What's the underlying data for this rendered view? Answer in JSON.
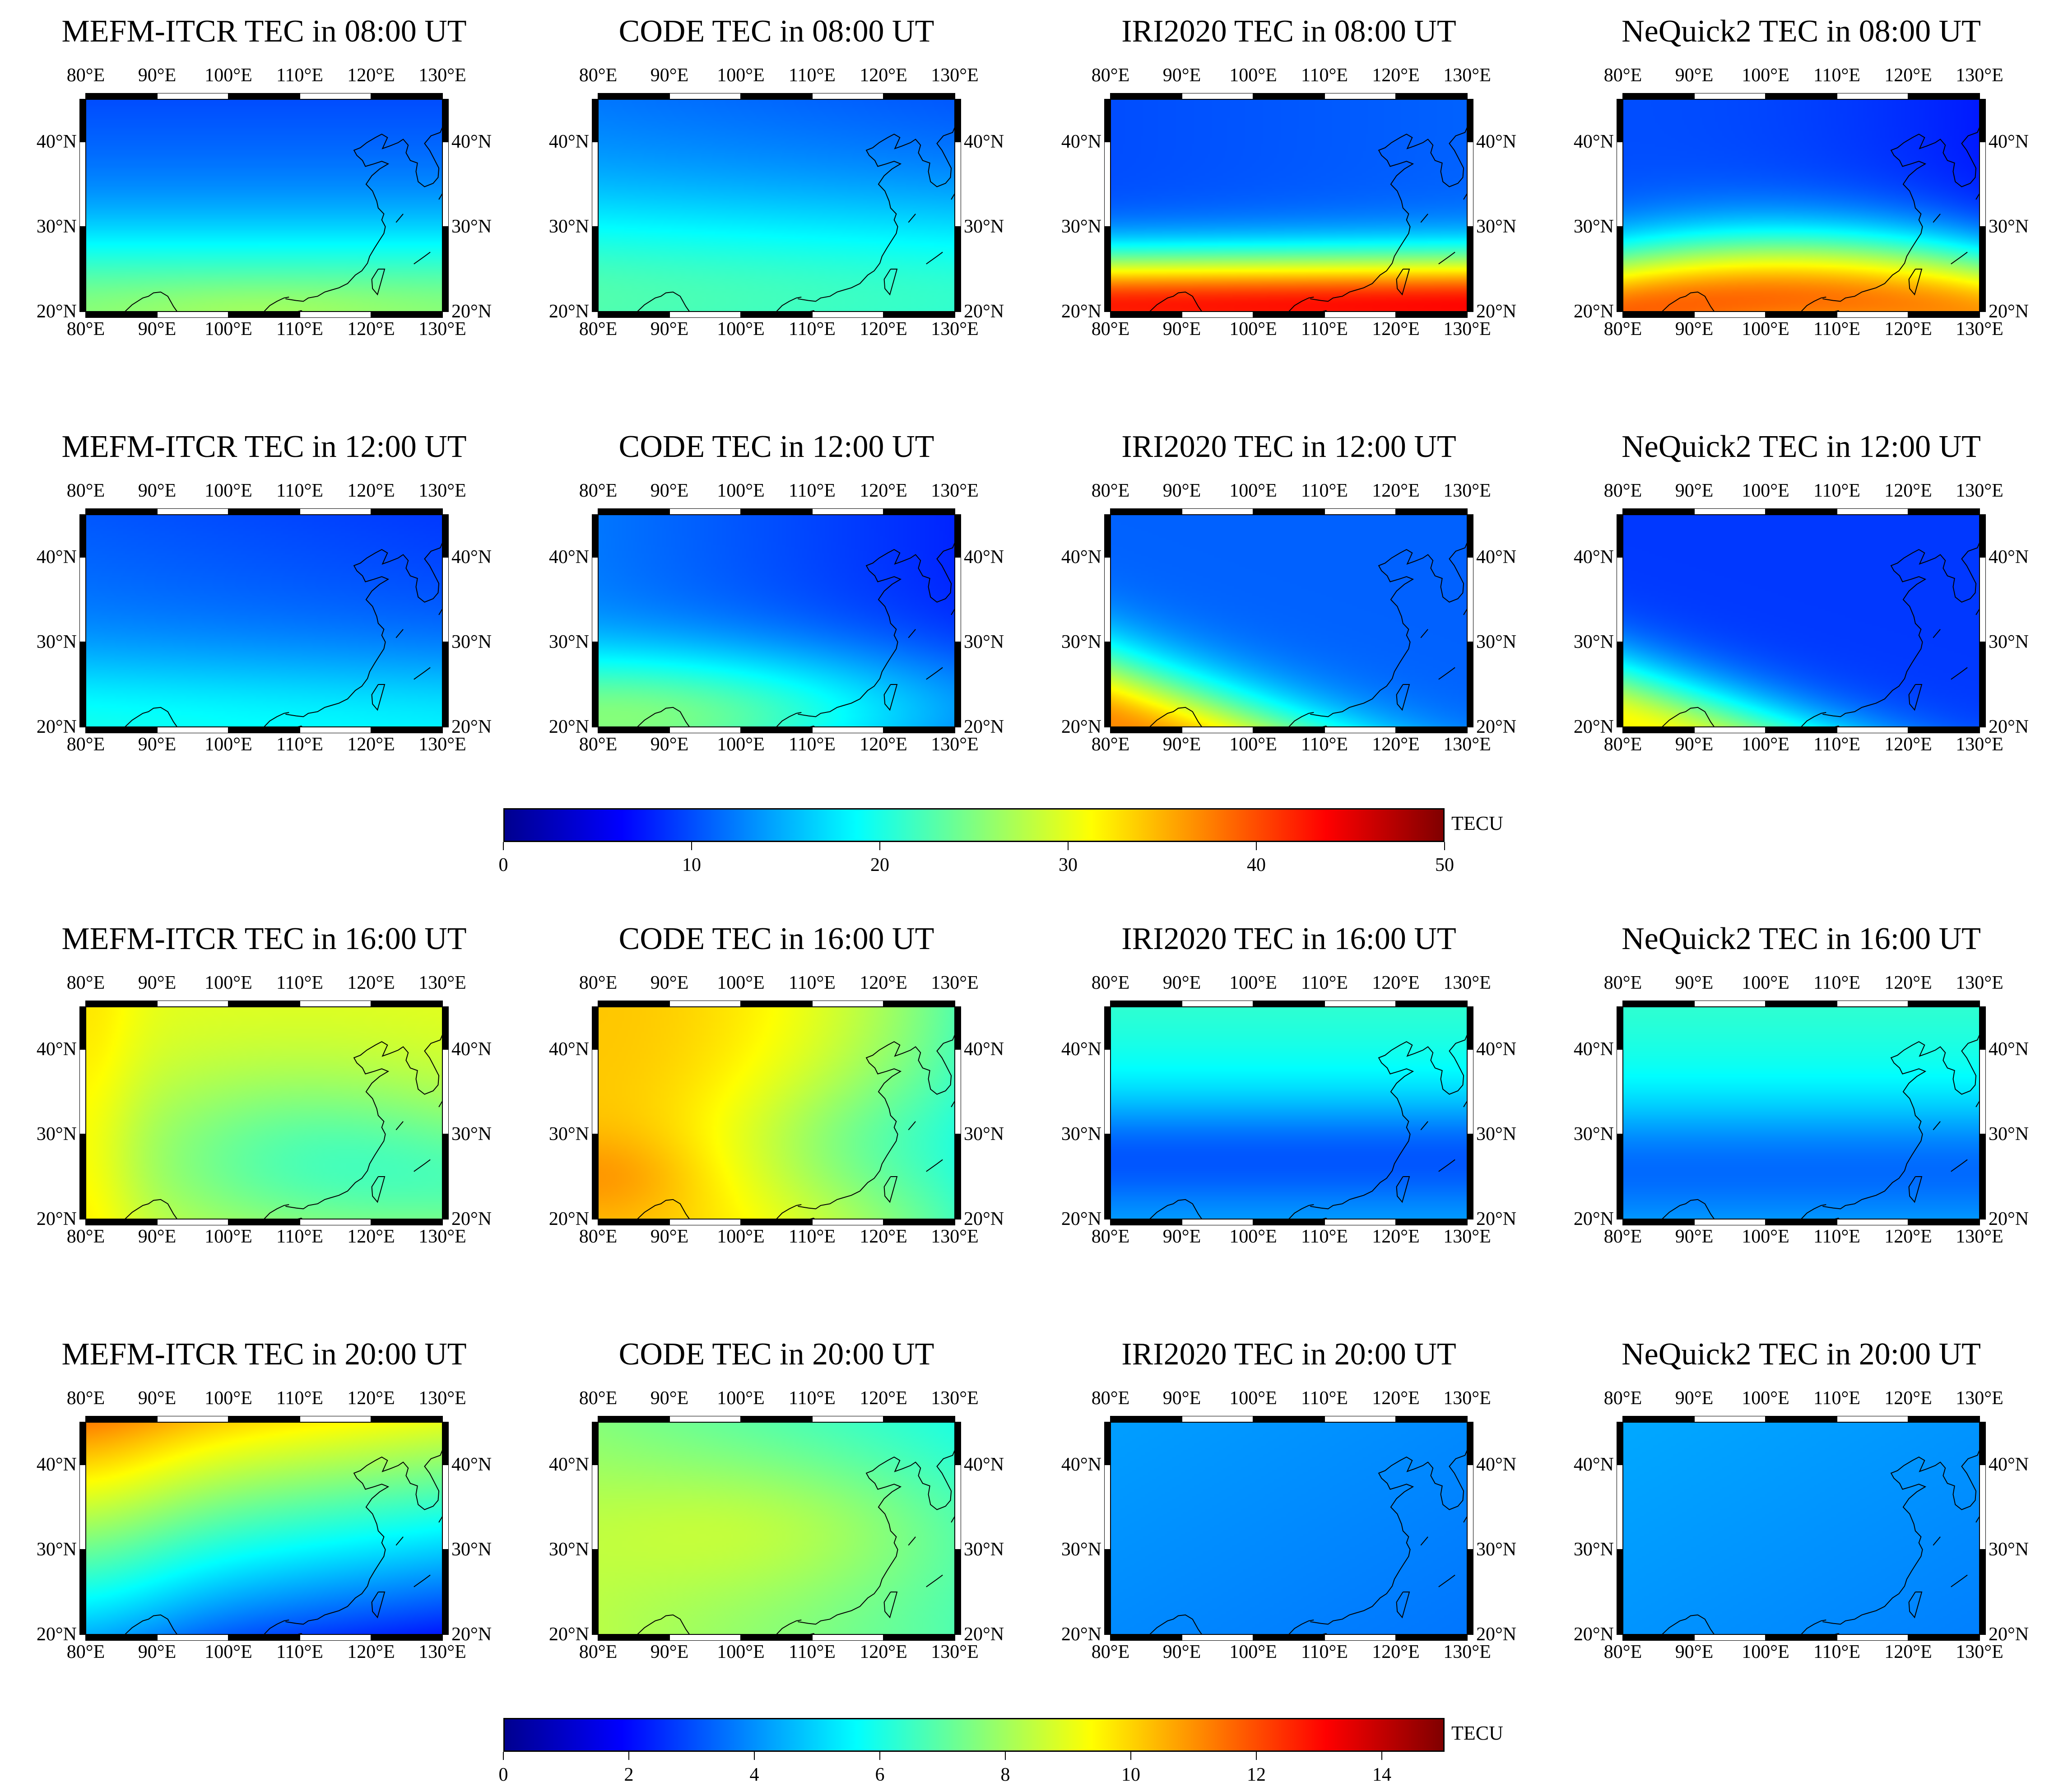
{
  "figure": {
    "rows": [
      {
        "row": 0,
        "panels": [
          {
            "title": "MEFM-ITCR TEC in 08:00 UT",
            "colorbar": 0
          },
          {
            "title": "CODE TEC in 08:00 UT",
            "colorbar": 0
          },
          {
            "title": "IRI2020 TEC in 08:00 UT",
            "colorbar": 0
          },
          {
            "title": "NeQuick2 TEC in 08:00 UT",
            "colorbar": 0
          }
        ]
      },
      {
        "row": 1,
        "panels": [
          {
            "title": "MEFM-ITCR TEC in 12:00 UT",
            "colorbar": 0
          },
          {
            "title": "CODE TEC in 12:00 UT",
            "colorbar": 0
          },
          {
            "title": "IRI2020 TEC in 12:00 UT",
            "colorbar": 0
          },
          {
            "title": "NeQuick2 TEC in 12:00 UT",
            "colorbar": 0
          }
        ]
      },
      {
        "row": 2,
        "panels": [
          {
            "title": "MEFM-ITCR TEC in 16:00 UT",
            "colorbar": 1
          },
          {
            "title": "CODE TEC in 16:00 UT",
            "colorbar": 1
          },
          {
            "title": "IRI2020 TEC in 16:00 UT",
            "colorbar": 1
          },
          {
            "title": "NeQuick2 TEC in 16:00 UT",
            "colorbar": 1
          }
        ]
      },
      {
        "row": 3,
        "panels": [
          {
            "title": "MEFM-ITCR TEC in 20:00 UT",
            "colorbar": 1
          },
          {
            "title": "CODE TEC in 20:00 UT",
            "colorbar": 1
          },
          {
            "title": "IRI2020 TEC in 20:00 UT",
            "colorbar": 1
          },
          {
            "title": "NeQuick2 TEC in 20:00 UT",
            "colorbar": 1
          }
        ]
      }
    ],
    "lon_ticks": [
      "80°E",
      "90°E",
      "100°E",
      "110°E",
      "120°E",
      "130°E"
    ],
    "lon_values": [
      80,
      90,
      100,
      110,
      120,
      130
    ],
    "lat_ticks": [
      "40°N",
      "30°N",
      "20°N"
    ],
    "lat_values": [
      40,
      30,
      20
    ],
    "lon_range": [
      80,
      130
    ],
    "lat_range": [
      20,
      45
    ],
    "colorbars": [
      {
        "unit": "TECU",
        "ticks": [
          "0",
          "10",
          "20",
          "30",
          "40",
          "50"
        ],
        "range": [
          0,
          50
        ]
      },
      {
        "unit": "TECU",
        "ticks": [
          "0",
          "2",
          "4",
          "6",
          "8",
          "10",
          "12",
          "14"
        ],
        "range": [
          0,
          15
        ]
      }
    ],
    "colormap": [
      "#00008f",
      "#0000ff",
      "#0080ff",
      "#00ffff",
      "#80ff80",
      "#ffff00",
      "#ff8000",
      "#ff0000",
      "#800000"
    ]
  }
}
